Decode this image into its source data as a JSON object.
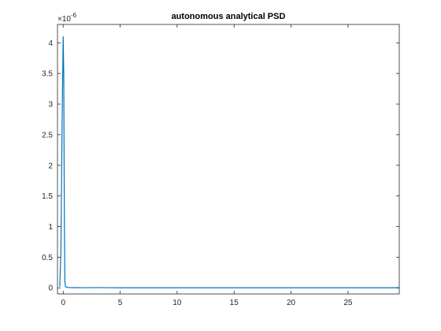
{
  "chart_data": {
    "type": "line",
    "title": "autonomous analytical PSD",
    "xlabel": "",
    "ylabel": "",
    "xlim": [
      -0.5,
      29.5
    ],
    "ylim": [
      -0.1,
      4.3
    ],
    "y_exponent_label": "×10",
    "y_exponent_power": "-6",
    "x_ticks": [
      0,
      5,
      10,
      15,
      20,
      25
    ],
    "x_tick_labels": [
      "0",
      "5",
      "10",
      "15",
      "20",
      "25"
    ],
    "y_ticks": [
      0,
      0.5,
      1,
      1.5,
      2,
      2.5,
      3,
      3.5,
      4
    ],
    "y_tick_labels": [
      "0",
      "0.5",
      "1",
      "1.5",
      "2",
      "2.5",
      "3",
      "3.5",
      "4"
    ],
    "grid": false,
    "series": [
      {
        "color": "#0072BD",
        "x": [
          -0.3,
          -0.2,
          -0.1,
          0,
          0.05,
          0.1,
          0.15,
          0.2,
          0.3,
          0.5,
          1,
          2,
          3,
          4,
          5,
          10,
          15,
          20,
          25,
          29.5
        ],
        "y": [
          0.02,
          0.6,
          2.6,
          4.1,
          3.5,
          1.2,
          0.1,
          0.02,
          0.01,
          0.005,
          0.003,
          0.002,
          0.004,
          0.002,
          0.001,
          0.001,
          0.001,
          0.001,
          0.001,
          0.001
        ]
      }
    ]
  }
}
